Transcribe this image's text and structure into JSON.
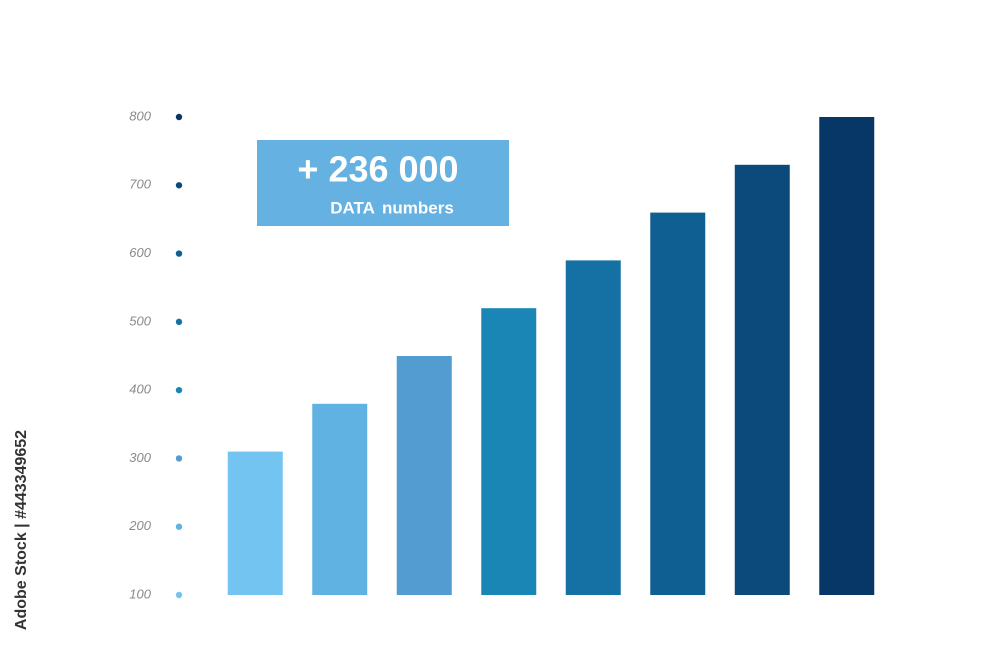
{
  "chart_data": {
    "type": "bar",
    "annotation": {
      "headline": "+ 236 000",
      "subtext": "DATA numbers",
      "color": "#65b1e1"
    },
    "credit": "Adobe Stock | #443349652",
    "categories": [
      null,
      null,
      null,
      null,
      null,
      null,
      null,
      null
    ],
    "values": [
      310,
      380,
      450,
      520,
      590,
      660,
      730,
      800
    ],
    "colors": [
      "#73c4f0",
      "#60b2e2",
      "#529cd2",
      "#1a86b6",
      "#1571a4",
      "#105f92",
      "#0c4a7b",
      "#073767"
    ],
    "ylim": [
      100,
      800
    ],
    "yticks": [
      100,
      200,
      300,
      400,
      500,
      600,
      700,
      800
    ],
    "tick_dot_colors": [
      "#73c4f0",
      "#60b2e2",
      "#529cd2",
      "#1a86b6",
      "#1571a4",
      "#105f92",
      "#0c4a7b",
      "#073767"
    ],
    "grid": false
  }
}
